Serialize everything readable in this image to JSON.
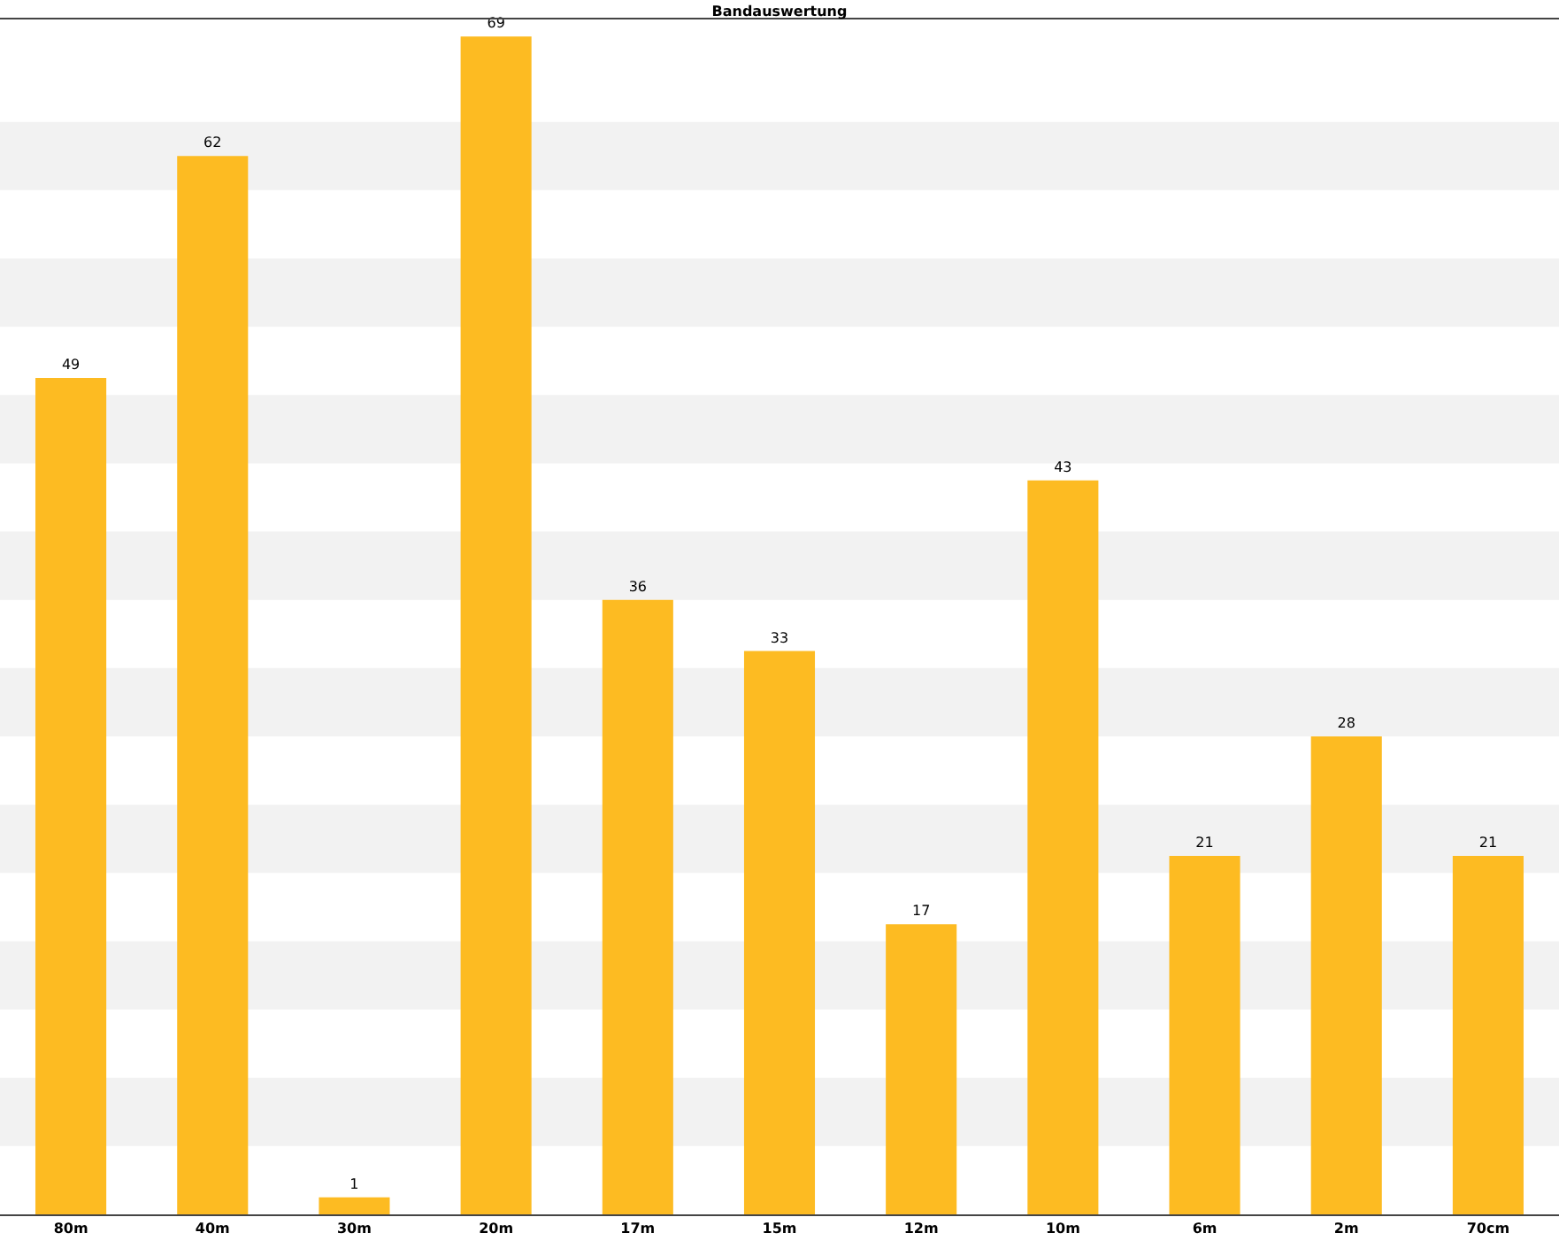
{
  "chart_data": {
    "type": "bar",
    "title": "Bandauswertung",
    "categories": [
      "80m",
      "40m",
      "30m",
      "20m",
      "17m",
      "15m",
      "12m",
      "10m",
      "6m",
      "2m",
      "70cm"
    ],
    "values": [
      49,
      62,
      1,
      69,
      36,
      33,
      17,
      43,
      21,
      28,
      21
    ],
    "color": "#fdbb22",
    "data_labels": true,
    "ylim": [
      0,
      70
    ],
    "grid": false,
    "legend": false,
    "bands": [
      {
        "axis": "y",
        "from": 4,
        "to": 8,
        "color": "#f2f2f2"
      },
      {
        "axis": "y",
        "from": 12,
        "to": 16,
        "color": "#f2f2f2"
      },
      {
        "axis": "y",
        "from": 20,
        "to": 24,
        "color": "#f2f2f2"
      },
      {
        "axis": "y",
        "from": 28,
        "to": 32,
        "color": "#f2f2f2"
      },
      {
        "axis": "y",
        "from": 36,
        "to": 40,
        "color": "#f2f2f2"
      },
      {
        "axis": "y",
        "from": 44,
        "to": 48,
        "color": "#f2f2f2"
      },
      {
        "axis": "y",
        "from": 52,
        "to": 56,
        "color": "#f2f2f2"
      },
      {
        "axis": "y",
        "from": 60,
        "to": 64,
        "color": "#f2f2f2"
      }
    ]
  }
}
